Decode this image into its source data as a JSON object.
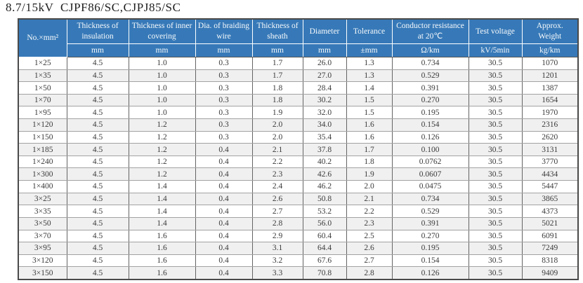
{
  "title": "8.7/15kV  CJPF86/SC,CJPJ85/SC",
  "colors": {
    "header_bg": "#3779b8",
    "header_text": "#f7fafc",
    "row_stripe": "#f0f0f0",
    "outer_border": "#4a4a4a",
    "inner_vertical_border": "#646464",
    "inner_horizontal_border": "#a2a2a2",
    "body_text": "#3b3b3b"
  },
  "table": {
    "columns": [
      {
        "label": "No.×mm²",
        "unit": ""
      },
      {
        "label": "Thickness of insulation",
        "unit": "mm"
      },
      {
        "label": "Thickness of inner covering",
        "unit": "mm"
      },
      {
        "label": "Dia. of braiding wire",
        "unit": "mm"
      },
      {
        "label": "Thickness of sheath",
        "unit": "mm"
      },
      {
        "label": "Diameter",
        "unit": "mm"
      },
      {
        "label": "Tolerance",
        "unit": "±mm"
      },
      {
        "label": "Conductor resistance at 20℃",
        "unit": "Ω/km"
      },
      {
        "label": "Test voltage",
        "unit": "kV/5min"
      },
      {
        "label": "Approx. Weight",
        "unit": "kg/km"
      }
    ],
    "rows": [
      [
        "1×25",
        "4.5",
        "1.0",
        "0.3",
        "1.7",
        "26.0",
        "1.3",
        "0.734",
        "30.5",
        "1070"
      ],
      [
        "1×35",
        "4.5",
        "1.0",
        "0.3",
        "1.7",
        "27.0",
        "1.3",
        "0.529",
        "30.5",
        "1201"
      ],
      [
        "1×50",
        "4.5",
        "1.0",
        "0.3",
        "1.8",
        "28.4",
        "1.4",
        "0.391",
        "30.5",
        "1387"
      ],
      [
        "1×70",
        "4.5",
        "1.0",
        "0.3",
        "1.8",
        "30.2",
        "1.5",
        "0.270",
        "30.5",
        "1654"
      ],
      [
        "1×95",
        "4.5",
        "1.0",
        "0.3",
        "1.9",
        "32.0",
        "1.5",
        "0.195",
        "30.5",
        "1970"
      ],
      [
        "1×120",
        "4.5",
        "1.2",
        "0.3",
        "2.0",
        "34.0",
        "1.6",
        "0.154",
        "30.5",
        "2316"
      ],
      [
        "1×150",
        "4.5",
        "1.2",
        "0.3",
        "2.0",
        "35.4",
        "1.6",
        "0.126",
        "30.5",
        "2620"
      ],
      [
        "1×185",
        "4.5",
        "1.2",
        "0.4",
        "2.1",
        "37.8",
        "1.7",
        "0.100",
        "30.5",
        "3131"
      ],
      [
        "1×240",
        "4.5",
        "1.2",
        "0.4",
        "2.2",
        "40.2",
        "1.8",
        "0.0762",
        "30.5",
        "3770"
      ],
      [
        "1×300",
        "4.5",
        "1.2",
        "0.4",
        "2.3",
        "42.6",
        "1.9",
        "0.0607",
        "30.5",
        "4434"
      ],
      [
        "1×400",
        "4.5",
        "1.4",
        "0.4",
        "2.4",
        "46.2",
        "2.0",
        "0.0475",
        "30.5",
        "5447"
      ],
      [
        "3×25",
        "4.5",
        "1.4",
        "0.4",
        "2.6",
        "50.8",
        "2.1",
        "0.734",
        "30.5",
        "3865"
      ],
      [
        "3×35",
        "4.5",
        "1.4",
        "0.4",
        "2.7",
        "53.2",
        "2.2",
        "0.529",
        "30.5",
        "4373"
      ],
      [
        "3×50",
        "4.5",
        "1.4",
        "0.4",
        "2.8",
        "56.0",
        "2.3",
        "0.391",
        "30.5",
        "5021"
      ],
      [
        "3×70",
        "4.5",
        "1.6",
        "0.4",
        "2.9",
        "60.4",
        "2.5",
        "0.270",
        "30.5",
        "6091"
      ],
      [
        "3×95",
        "4.5",
        "1.6",
        "0.4",
        "3.1",
        "64.4",
        "2.6",
        "0.195",
        "30.5",
        "7249"
      ],
      [
        "3×120",
        "4.5",
        "1.6",
        "0.4",
        "3.2",
        "67.6",
        "2.7",
        "0.154",
        "30.5",
        "8318"
      ],
      [
        "3×150",
        "4.5",
        "1.6",
        "0.4",
        "3.3",
        "70.8",
        "2.8",
        "0.126",
        "30.5",
        "9409"
      ]
    ]
  }
}
